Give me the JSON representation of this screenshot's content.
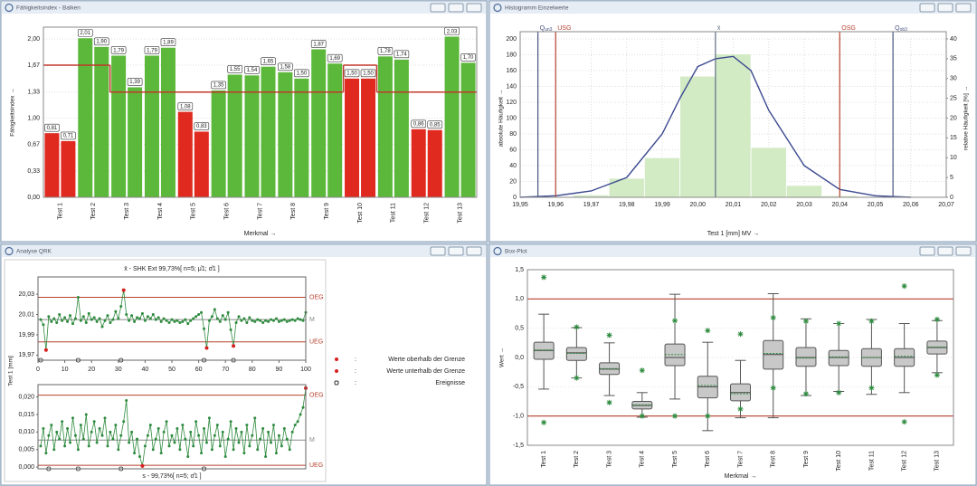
{
  "chart_data": [
    {
      "type": "bar",
      "window_title": "Fähigkeitsindex - Balken",
      "x_label": "Merkmal →",
      "y_label": "Fähigkeitsindex →",
      "categories": [
        "Test 1",
        "Test 2",
        "Test 3",
        "Test 4",
        "Test 5",
        "Test 6",
        "Test 7",
        "Test 8",
        "Test 9",
        "Test 10",
        "Test 11",
        "Test 12",
        "Test 13"
      ],
      "series": [
        {
          "values": [
            0.81,
            2.01,
            1.79,
            1.79,
            1.08,
            1.35,
            1.54,
            1.58,
            1.87,
            1.5,
            1.78,
            0.86,
            2.03
          ],
          "value_labels": [
            "0,81",
            "2,01",
            "1,79",
            "1,79",
            "1,08",
            "1,35",
            "1,54",
            "1,58",
            "1,87",
            "1,50",
            "1,78",
            "0,86",
            "2,03"
          ],
          "colors": [
            "#e02a1f",
            "#5cb83a",
            "#5cb83a",
            "#5cb83a",
            "#e02a1f",
            "#5cb83a",
            "#5cb83a",
            "#5cb83a",
            "#5cb83a",
            "#e02a1f",
            "#5cb83a",
            "#e02a1f",
            "#5cb83a"
          ]
        },
        {
          "values": [
            0.71,
            1.9,
            1.39,
            1.89,
            0.83,
            1.55,
            1.65,
            1.5,
            1.69,
            1.5,
            1.74,
            0.85,
            1.7
          ],
          "value_labels": [
            "0,71",
            "1,90",
            "1,39",
            "1,89",
            "0,83",
            "1,55",
            "1,65",
            "1,50",
            "1,69",
            "1,50",
            "1,74",
            "0,85",
            "1,70"
          ],
          "colors": [
            "#e02a1f",
            "#5cb83a",
            "#5cb83a",
            "#5cb83a",
            "#e02a1f",
            "#5cb83a",
            "#5cb83a",
            "#5cb83a",
            "#5cb83a",
            "#e02a1f",
            "#5cb83a",
            "#e02a1f",
            "#5cb83a"
          ]
        }
      ],
      "limit": [
        1.67,
        1.67,
        1.33,
        1.33,
        1.33,
        1.33,
        1.33,
        1.33,
        1.33,
        1.67,
        1.33,
        1.33,
        1.33
      ],
      "limit_color": "#c0392b",
      "ylim": [
        0,
        2.15
      ],
      "yticks": [
        {
          "value": 0,
          "label": "0,00"
        },
        {
          "value": 0.33,
          "label": "0,33"
        },
        {
          "value": 0.67,
          "label": "0,67"
        },
        {
          "value": 1.0,
          "label": "1,00"
        },
        {
          "value": 1.33,
          "label": "1,33"
        },
        {
          "value": 1.67,
          "label": "1,67"
        },
        {
          "value": 2.0,
          "label": "2,00"
        }
      ],
      "grid": true
    },
    {
      "type": "histogram",
      "window_title": "Histogramm Einzelwerte",
      "x_label": "Test 1 [mm]  MV →",
      "y_label": "absolute Häufigkeit →",
      "y2_label": "relative Häufigkeit [%] →",
      "bins": [
        19.965,
        19.975,
        19.985,
        19.995,
        20.005,
        20.015,
        20.025,
        20.035,
        20.045
      ],
      "values": [
        3,
        24,
        50,
        153,
        181,
        63,
        15,
        2
      ],
      "color": "#d3ebc5",
      "curve": {
        "x": [
          19.95,
          19.96,
          19.97,
          19.98,
          19.99,
          19.995,
          20.0,
          20.005,
          20.01,
          20.015,
          20.02,
          20.03,
          20.04,
          20.05,
          20.06
        ],
        "values": [
          0,
          2,
          8,
          25,
          80,
          125,
          165,
          175,
          178,
          160,
          110,
          40,
          10,
          2,
          0
        ],
        "color": "#3b4a8f"
      },
      "reference_lines": [
        {
          "label": "Q",
          "sub": "un3",
          "value": 19.955,
          "color": "#4a5580"
        },
        {
          "label": "USG",
          "value": 19.96,
          "color": "#b5412c"
        },
        {
          "label": "x̄",
          "value": 20.005,
          "color": "#5f6f80"
        },
        {
          "label": "OSG",
          "value": 20.04,
          "color": "#b5412c"
        },
        {
          "label": "Q",
          "sub": "ob3",
          "value": 20.055,
          "color": "#4a5580"
        }
      ],
      "xlim": [
        19.95,
        20.07
      ],
      "xticks": [
        {
          "value": 19.95,
          "label": "19,95"
        },
        {
          "value": 19.96,
          "label": "19,96"
        },
        {
          "value": 19.97,
          "label": "19,97"
        },
        {
          "value": 19.98,
          "label": "19,98"
        },
        {
          "value": 19.99,
          "label": "19,99"
        },
        {
          "value": 20.0,
          "label": "20,00"
        },
        {
          "value": 20.01,
          "label": "20,01"
        },
        {
          "value": 20.02,
          "label": "20,02"
        },
        {
          "value": 20.03,
          "label": "20,03"
        },
        {
          "value": 20.04,
          "label": "20,04"
        },
        {
          "value": 20.05,
          "label": "20,05"
        },
        {
          "value": 20.06,
          "label": "20,06"
        },
        {
          "value": 20.07,
          "label": "20,07"
        }
      ],
      "ylim": [
        0,
        200
      ],
      "yticks": [
        0,
        20,
        40,
        60,
        80,
        100,
        120,
        140,
        160,
        180,
        200
      ],
      "y2lim": [
        0,
        40
      ],
      "y2ticks": [
        0,
        5,
        10,
        15,
        20,
        25,
        30,
        35,
        40
      ],
      "grid": true
    },
    {
      "type": "control",
      "window_title": "Analyse QRK",
      "y_label": "Test 1 [mm]",
      "point_color": "#2e8b3e",
      "out_color": "#d62020",
      "x": [
        1,
        2,
        3,
        4,
        5,
        6,
        7,
        8,
        9,
        10,
        11,
        12,
        13,
        14,
        15,
        16,
        17,
        18,
        19,
        20,
        21,
        22,
        23,
        24,
        25,
        26,
        27,
        28,
        29,
        30,
        31,
        32,
        33,
        34,
        35,
        36,
        37,
        38,
        39,
        40,
        41,
        42,
        43,
        44,
        45,
        46,
        47,
        48,
        49,
        50,
        51,
        52,
        53,
        54,
        55,
        56,
        57,
        58,
        59,
        60,
        61,
        62,
        63,
        64,
        65,
        66,
        67,
        68,
        69,
        70,
        71,
        72,
        73,
        74,
        75,
        76,
        77,
        78,
        79,
        80,
        81,
        82,
        83,
        84,
        85,
        86,
        87,
        88,
        89,
        90,
        91,
        92,
        93,
        94,
        95,
        96,
        97,
        98,
        99,
        100
      ],
      "xlim": [
        0,
        100
      ],
      "charts": [
        {
          "title": "x̄ - SHK Ext 99,73%[ n=5; μ̂1; σ̂1 ]",
          "ylim": [
            19.965,
            20.047
          ],
          "yticks": [
            {
              "value": 19.97,
              "label": "19,97"
            },
            {
              "value": 19.99,
              "label": "19,99"
            },
            {
              "value": 20.01,
              "label": "20,01"
            },
            {
              "value": 20.03,
              "label": "20,03"
            }
          ],
          "xticks": [
            0,
            10,
            20,
            30,
            40,
            50,
            60,
            70,
            80,
            90,
            100
          ],
          "limit_lines": [
            {
              "label": "OEG",
              "value": 20.027,
              "color": "#b5412c"
            },
            {
              "label": "M",
              "value": 20.005,
              "color": "#8a8a8a"
            },
            {
              "label": "UEG",
              "value": 19.983,
              "color": "#b5412c"
            }
          ],
          "events": [
            1,
            15,
            31,
            62,
            73
          ],
          "values": [
            20.005,
            20.0,
            19.975,
            20.008,
            20.003,
            20.006,
            20.002,
            20.01,
            20.004,
            20.007,
            20.003,
            20.009,
            20.001,
            20.006,
            20.027,
            20.004,
            20.008,
            20.002,
            20.011,
            20.005,
            20.007,
            20.003,
            20.006,
            19.998,
            20.004,
            20.009,
            20.002,
            20.005,
            20.013,
            20.006,
            20.018,
            20.034,
            20.01,
            20.004,
            20.009,
            20.003,
            20.007,
            20.006,
            20.011,
            20.004,
            20.008,
            20.006,
            20.01,
            20.005,
            20.007,
            20.003,
            20.006,
            20.004,
            20.002,
            20.005,
            20.003,
            20.004,
            20.002,
            20.003,
            20.005,
            20.001,
            20.004,
            20.006,
            20.008,
            20.01,
            20.012,
            19.996,
            19.977,
            20.004,
            20.008,
            20.015,
            20.006,
            20.003,
            20.009,
            20.005,
            20.012,
            19.995,
            19.979,
            20.002,
            20.008,
            20.004,
            20.006,
            20.002,
            20.007,
            20.004,
            20.003,
            20.005,
            20.004,
            20.002,
            20.004,
            20.003,
            20.005,
            20.004,
            20.006,
            20.003,
            20.004,
            20.005,
            20.003,
            20.004,
            20.005,
            20.004,
            20.006,
            20.005,
            20.004,
            20.012
          ]
        },
        {
          "title": "s - 99,73%[ n=5; σ̂1 ]",
          "ylim": [
            -0.0005,
            0.0235
          ],
          "yticks": [
            {
              "value": 0,
              "label": "0,000"
            },
            {
              "value": 0.005,
              "label": "0,005"
            },
            {
              "value": 0.01,
              "label": "0,010"
            },
            {
              "value": 0.015,
              "label": "0,015"
            },
            {
              "value": 0.02,
              "label": "0,020"
            }
          ],
          "limit_lines": [
            {
              "label": "OEG",
              "value": 0.0205,
              "color": "#b5412c"
            },
            {
              "label": "M",
              "value": 0.0077,
              "color": "#8a8a8a"
            },
            {
              "label": "UEG",
              "value": 0.0005,
              "color": "#b5412c"
            }
          ],
          "events": [
            4,
            15,
            31,
            62
          ],
          "values": [
            0.006,
            0.011,
            0.004,
            0.009,
            0.012,
            0.005,
            0.01,
            0.008,
            0.013,
            0.006,
            0.011,
            0.007,
            0.014,
            0.009,
            0.005,
            0.012,
            0.008,
            0.015,
            0.006,
            0.01,
            0.013,
            0.007,
            0.011,
            0.009,
            0.014,
            0.006,
            0.01,
            0.008,
            0.012,
            0.005,
            0.009,
            0.013,
            0.019,
            0.007,
            0.01,
            0.004,
            0.008,
            0.003,
            0.0003,
            0.006,
            0.009,
            0.012,
            0.005,
            0.008,
            0.011,
            0.004,
            0.01,
            0.013,
            0.006,
            0.009,
            0.007,
            0.011,
            0.005,
            0.012,
            0.008,
            0.003,
            0.01,
            0.006,
            0.013,
            0.009,
            0.004,
            0.011,
            0.007,
            0.014,
            0.005,
            0.009,
            0.012,
            0.006,
            0.01,
            0.003,
            0.008,
            0.013,
            0.005,
            0.011,
            0.007,
            0.01,
            0.004,
            0.012,
            0.006,
            0.009,
            0.014,
            0.005,
            0.008,
            0.011,
            0.003,
            0.01,
            0.007,
            0.012,
            0.004,
            0.009,
            0.006,
            0.011,
            0.008,
            0.005,
            0.01,
            0.012,
            0.013,
            0.015,
            0.017,
            0.0225
          ]
        }
      ],
      "legend_separator": ":",
      "legend": [
        {
          "label": "Werte oberhalb der Grenze",
          "symbol": "dot",
          "color": "#d62020"
        },
        {
          "label": "Werte unterhalb der Grenze",
          "symbol": "dot",
          "color": "#d62020"
        },
        {
          "label": "Ereignisse",
          "symbol": "event",
          "color": "#333333"
        }
      ]
    },
    {
      "type": "box",
      "window_title": "Box-Plot",
      "x_label": "Merkmal →",
      "y_label": "Wert →",
      "box_color": "#c8c8c8",
      "mean_color": "#2e8b3e",
      "star_color": "#2e8b3e",
      "categories": [
        "Test 1",
        "Test 2",
        "Test 3",
        "Test 4",
        "Test 5",
        "Test 6",
        "Test 7",
        "Test 8",
        "Test 9",
        "Test 10",
        "Test 11",
        "Test 12",
        "Test 13"
      ],
      "whisker_low": [
        -0.54,
        -0.35,
        -0.65,
        -1.02,
        -0.71,
        -1.25,
        -1.03,
        -1.03,
        -0.65,
        -0.58,
        -0.63,
        -0.6,
        -0.26
      ],
      "q1": [
        -0.03,
        -0.05,
        -0.29,
        -0.88,
        -0.14,
        -0.69,
        -0.74,
        -0.2,
        -0.15,
        -0.14,
        -0.15,
        -0.15,
        0.06
      ],
      "median": [
        0.12,
        0.08,
        -0.2,
        -0.82,
        0.0,
        -0.5,
        -0.6,
        0.05,
        0.0,
        0.0,
        0.0,
        0.0,
        0.17
      ],
      "mean": [
        0.13,
        0.07,
        -0.19,
        -0.81,
        0.05,
        -0.48,
        -0.62,
        0.07,
        -0.01,
        0.01,
        0.0,
        0.02,
        0.18
      ],
      "q3": [
        0.26,
        0.17,
        -0.09,
        -0.75,
        0.23,
        -0.32,
        -0.45,
        0.29,
        0.17,
        0.12,
        0.15,
        0.15,
        0.28
      ],
      "whisker_high": [
        0.74,
        0.51,
        0.25,
        -0.6,
        1.08,
        0.26,
        -0.05,
        1.09,
        0.66,
        0.58,
        0.65,
        0.58,
        0.63
      ],
      "star_high": [
        1.37,
        0.52,
        0.38,
        -0.22,
        0.63,
        0.46,
        0.4,
        0.68,
        0.62,
        0.58,
        0.62,
        1.22,
        0.65
      ],
      "star_low": [
        -1.11,
        -0.35,
        -0.77,
        -1.0,
        -1.0,
        -1.0,
        -0.88,
        -0.52,
        -0.62,
        -0.6,
        -0.52,
        -1.1,
        -0.3
      ],
      "limit_lines": [
        1.0,
        -1.0
      ],
      "limit_color": "#b5412c",
      "ylim": [
        -1.5,
        1.5
      ],
      "yticks": [
        {
          "value": -1.5,
          "label": "-1,5"
        },
        {
          "value": -1.0,
          "label": "-1,0"
        },
        {
          "value": -0.5,
          "label": "-0,5"
        },
        {
          "value": 0,
          "label": "0,0"
        },
        {
          "value": 0.5,
          "label": "0,5"
        },
        {
          "value": 1.0,
          "label": "1,0"
        },
        {
          "value": 1.5,
          "label": "1,5"
        }
      ],
      "grid": true
    }
  ]
}
